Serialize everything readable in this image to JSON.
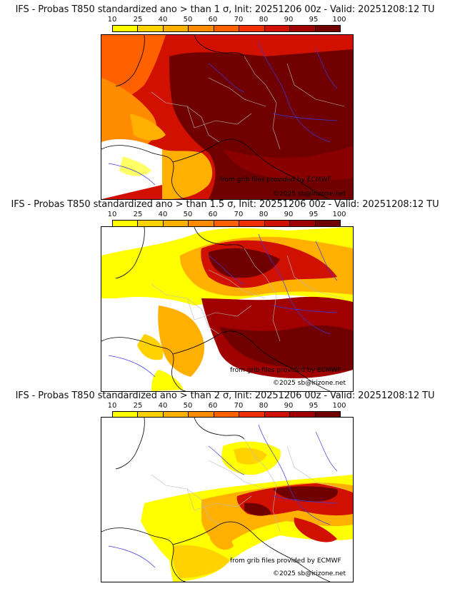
{
  "colorbar": {
    "ticks": [
      "10",
      "25",
      "40",
      "50",
      "60",
      "70",
      "80",
      "90",
      "95",
      "100"
    ],
    "colors": [
      "#ffff00",
      "#ffd200",
      "#ffb000",
      "#ff8c00",
      "#ff6000",
      "#f03000",
      "#d01000",
      "#a00000",
      "#700000"
    ]
  },
  "panels": [
    {
      "title": "IFS - Probas T850  standardized ano > than 1 σ, Init: 20251206 00z - Valid: 20251208:12 TU",
      "credit_source": "from grib files provided by ECMWF",
      "credit_copyright": "©2025 sb@irizone.net"
    },
    {
      "title": "IFS - Probas T850  standardized ano > than 1.5 σ, Init: 20251206 00z - Valid: 20251208:12 TU",
      "credit_source": "from grib files provided by ECMWF",
      "credit_copyright": "©2025 sb@irizone.net"
    },
    {
      "title": "IFS - Probas T850  standardized ano > than 2 σ, Init: 20251206 00z - Valid: 20251208:12 TU",
      "credit_source": "from grib files provided by ECMWF",
      "credit_copyright": "©2025 sb@irizone.net"
    }
  ]
}
